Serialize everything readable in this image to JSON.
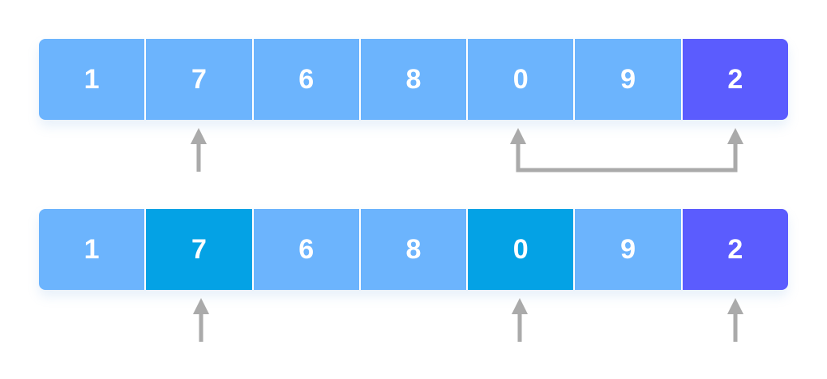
{
  "colors": {
    "cell": "#6cb4fd",
    "swapped_cell": "#04a2e5",
    "pivot_cell": "#5b5cfe",
    "arrow": "#aaaaaa",
    "text": "#ffffff"
  },
  "rows": [
    {
      "cells": [
        {
          "value": "1",
          "role": "normal"
        },
        {
          "value": "7",
          "role": "normal"
        },
        {
          "value": "6",
          "role": "normal"
        },
        {
          "value": "8",
          "role": "normal"
        },
        {
          "value": "0",
          "role": "normal"
        },
        {
          "value": "9",
          "role": "normal"
        },
        {
          "value": "2",
          "role": "pivot"
        }
      ]
    },
    {
      "cells": [
        {
          "value": "1",
          "role": "normal"
        },
        {
          "value": "7",
          "role": "swap"
        },
        {
          "value": "6",
          "role": "normal"
        },
        {
          "value": "8",
          "role": "normal"
        },
        {
          "value": "0",
          "role": "swap"
        },
        {
          "value": "9",
          "role": "normal"
        },
        {
          "value": "2",
          "role": "pivot"
        }
      ]
    }
  ]
}
